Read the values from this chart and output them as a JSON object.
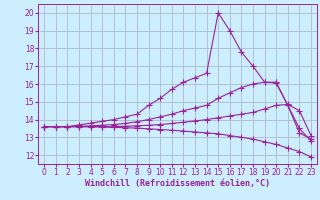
{
  "bg_color": "#cceeff",
  "grid_color": "#aabbcc",
  "line_color": "#992299",
  "marker": "+",
  "markersize": 4,
  "linewidth": 0.8,
  "xlabel": "Windchill (Refroidissement éolien,°C)",
  "xlabel_fontsize": 6,
  "tick_fontsize": 5.5,
  "xlim": [
    -0.5,
    23.5
  ],
  "ylim": [
    11.5,
    20.5
  ],
  "yticks": [
    12,
    13,
    14,
    15,
    16,
    17,
    18,
    19,
    20
  ],
  "xticks": [
    0,
    1,
    2,
    3,
    4,
    5,
    6,
    7,
    8,
    9,
    10,
    11,
    12,
    13,
    14,
    15,
    16,
    17,
    18,
    19,
    20,
    21,
    22,
    23
  ],
  "line1_x": [
    0,
    1,
    2,
    3,
    4,
    5,
    6,
    7,
    8,
    9,
    10,
    11,
    12,
    13,
    14,
    15,
    16,
    17,
    18,
    19,
    20,
    21,
    22,
    23
  ],
  "line1_y": [
    13.6,
    13.6,
    13.6,
    13.7,
    13.8,
    13.9,
    14.0,
    14.15,
    14.3,
    14.8,
    15.2,
    15.7,
    16.1,
    16.35,
    16.6,
    20.0,
    19.0,
    17.8,
    17.0,
    16.1,
    16.05,
    14.8,
    13.25,
    12.9
  ],
  "line2_x": [
    0,
    1,
    2,
    3,
    4,
    5,
    6,
    7,
    8,
    9,
    10,
    11,
    12,
    13,
    14,
    15,
    16,
    17,
    18,
    19,
    20,
    21,
    22,
    23
  ],
  "line2_y": [
    13.6,
    13.6,
    13.6,
    13.62,
    13.65,
    13.68,
    13.72,
    13.78,
    13.88,
    14.0,
    14.15,
    14.3,
    14.5,
    14.65,
    14.8,
    15.2,
    15.5,
    15.8,
    16.0,
    16.1,
    16.1,
    14.8,
    13.5,
    12.8
  ],
  "line3_x": [
    0,
    1,
    2,
    3,
    4,
    5,
    6,
    7,
    8,
    9,
    10,
    11,
    12,
    13,
    14,
    15,
    16,
    17,
    18,
    19,
    20,
    21,
    22,
    23
  ],
  "line3_y": [
    13.6,
    13.6,
    13.6,
    13.6,
    13.6,
    13.6,
    13.6,
    13.62,
    13.65,
    13.68,
    13.72,
    13.78,
    13.85,
    13.92,
    14.0,
    14.1,
    14.2,
    14.3,
    14.4,
    14.6,
    14.8,
    14.85,
    14.5,
    13.1
  ],
  "line4_x": [
    0,
    1,
    2,
    3,
    4,
    5,
    6,
    7,
    8,
    9,
    10,
    11,
    12,
    13,
    14,
    15,
    16,
    17,
    18,
    19,
    20,
    21,
    22,
    23
  ],
  "line4_y": [
    13.6,
    13.6,
    13.6,
    13.6,
    13.6,
    13.58,
    13.56,
    13.54,
    13.52,
    13.48,
    13.44,
    13.4,
    13.35,
    13.3,
    13.25,
    13.2,
    13.1,
    13.0,
    12.9,
    12.75,
    12.6,
    12.4,
    12.2,
    11.9
  ]
}
